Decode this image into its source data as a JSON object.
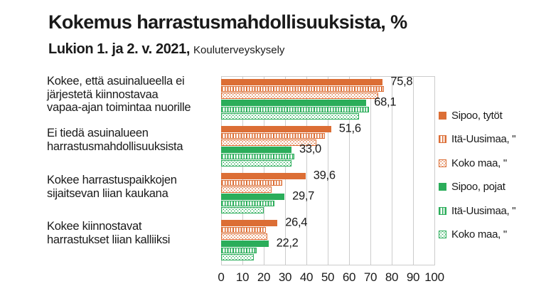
{
  "title": "Kokemus harrastusmahdollisuuksista, %",
  "subtitle": {
    "bold": "Lukion 1. ja 2. v.  2021,",
    "regular": "Kouluterveyskysely"
  },
  "colors": {
    "orange": "#DC6E35",
    "green": "#2BAD5A",
    "grid": "#CCCCCC",
    "text": "#1A1A1A"
  },
  "chart_data": {
    "type": "bar",
    "orientation": "horizontal",
    "title": "Kokemus harrastusmahdollisuuksista, %",
    "subtitle": "Lukion 1. ja 2. v. 2021, Kouluterveyskysely",
    "xlabel": "",
    "ylabel": "",
    "xlim": [
      0,
      100
    ],
    "xticks": [
      0,
      10,
      20,
      30,
      40,
      50,
      60,
      70,
      80,
      90,
      100
    ],
    "grid": true,
    "legend_position": "right",
    "categories": [
      [
        "Kokee, että asuinalueella ei",
        "järjestetä kiinnostavaa",
        "vapaa-ajan toimintaa nuorille"
      ],
      [
        "Ei tiedä asuinalueen",
        "harrastusmahdollisuuksista"
      ],
      [
        "Kokee harrastuspaikkojen",
        "sijaitsevan liian kaukana"
      ],
      [
        "Kokee kiinnostavat",
        "harrastukset liian kalliiksi"
      ]
    ],
    "series": [
      {
        "name": "Sipoo, tytöt",
        "legend_label": "Sipoo, tytöt",
        "style": "solid-orange",
        "values": [
          75.8,
          51.6,
          39.6,
          26.4
        ],
        "value_labels": [
          "75,8",
          "51,6",
          "39,6",
          "26,4"
        ]
      },
      {
        "name": "Itä-Uusimaa, tytöt",
        "legend_label": "Itä-Uusimaa, \"",
        "style": "striped-orange",
        "values": [
          76.3,
          48.6,
          28.7,
          21.1
        ],
        "value_labels": null
      },
      {
        "name": "Koko maa, tytöt",
        "legend_label": "Koko maa, \"",
        "style": "dotted-orange",
        "values": [
          73.7,
          44.6,
          23.7,
          21.8
        ],
        "value_labels": null
      },
      {
        "name": "Sipoo, pojat",
        "legend_label": "Sipoo, pojat",
        "style": "solid-green",
        "values": [
          68.1,
          33.0,
          29.7,
          22.2
        ],
        "value_labels": [
          "68,1",
          "33,0",
          "29,7",
          "22,2"
        ]
      },
      {
        "name": "Itä-Uusimaa, pojat",
        "legend_label": "Itä-Uusimaa, \"",
        "style": "striped-green",
        "values": [
          69.4,
          34.4,
          25.0,
          16.7
        ],
        "value_labels": null
      },
      {
        "name": "Koko maa, pojat",
        "legend_label": "Koko maa, \"",
        "style": "dotted-green",
        "values": [
          64.8,
          32.9,
          20.1,
          15.3
        ],
        "value_labels": null
      }
    ]
  }
}
